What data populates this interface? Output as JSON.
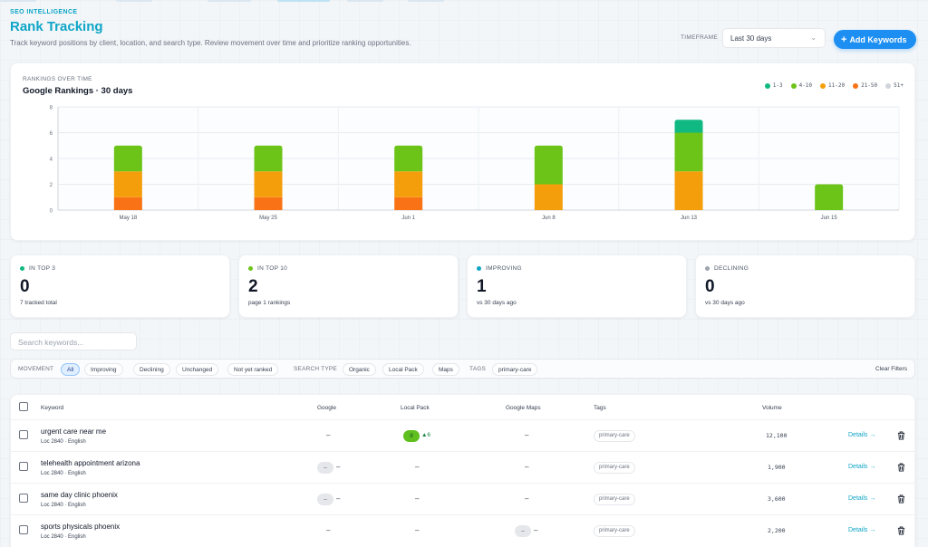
{
  "header": {
    "eyebrow": "SEO INTELLIGENCE",
    "title": "Rank Tracking",
    "subtitle": "Track keyword positions by client, location, and search type. Review movement over time and prioritize ranking opportunities.",
    "timeframe_label": "TIMEFRAME",
    "timeframe_value": "Last 30 days",
    "add_button": "Add Keywords"
  },
  "chart_card": {
    "eyebrow": "RANKINGS OVER TIME",
    "title": "Google Rankings · 30 days"
  },
  "colors": {
    "r1_3": "#10b981",
    "r4_10": "#6cc419",
    "r11_20": "#f59e0b",
    "r21_50": "#f97316",
    "r51": "#d1d5db",
    "accent": "#0ea5c6"
  },
  "chart_data": {
    "type": "bar",
    "stacked": true,
    "title": "Google Rankings · 30 days",
    "categories": [
      "May 18",
      "May 25",
      "Jun 1",
      "Jun 8",
      "Jun 13",
      "Jun 15"
    ],
    "series": [
      {
        "name": "1-3",
        "color": "#10b981",
        "values": [
          0,
          0,
          0,
          0,
          1,
          0
        ]
      },
      {
        "name": "4-10",
        "color": "#6cc419",
        "values": [
          2,
          2,
          2,
          3,
          3,
          2
        ]
      },
      {
        "name": "11-20",
        "color": "#f59e0b",
        "values": [
          2,
          2,
          2,
          2,
          3,
          0
        ]
      },
      {
        "name": "21-50",
        "color": "#f97316",
        "values": [
          1,
          1,
          1,
          0,
          0,
          0
        ]
      },
      {
        "name": "51+",
        "color": "#d1d5db",
        "values": [
          0,
          0,
          0,
          0,
          0,
          0
        ]
      }
    ],
    "yticks": [
      "0",
      "2",
      "4",
      "6",
      "8"
    ],
    "ylim": [
      0,
      8
    ],
    "grid": true,
    "legend_position": "top-right"
  },
  "stats": [
    {
      "label": "IN TOP 3",
      "value": "0",
      "sub": "7 tracked total",
      "color": "#10b981"
    },
    {
      "label": "IN TOP 10",
      "value": "2",
      "sub": "page 1 rankings",
      "color": "#6cc419"
    },
    {
      "label": "IMPROVING",
      "value": "1",
      "sub": "vs 30 days ago",
      "color": "#0ea5c6"
    },
    {
      "label": "DECLINING",
      "value": "0",
      "sub": "vs 30 days ago",
      "color": "#9ca3af"
    }
  ],
  "search": {
    "placeholder": "Search keywords..."
  },
  "filters": {
    "movement_label": "MOVEMENT",
    "movement": [
      "All",
      "Improving",
      "Declining",
      "Unchanged",
      "Not yet ranked"
    ],
    "search_type_label": "SEARCH TYPE",
    "search_types": [
      "Organic",
      "Local Pack",
      "Maps"
    ],
    "tags_label": "TAGS",
    "tags": [
      "primary-care"
    ],
    "clear": "Clear Filters"
  },
  "table": {
    "columns": [
      "Keyword",
      "Google",
      "Local Pack",
      "Google Maps",
      "Tags",
      "Volume"
    ],
    "rows": [
      {
        "keyword": "urgent care near me",
        "loc": "Loc 2840 · English",
        "google": "–",
        "local_pack": "8",
        "local_pack_delta": "▲6",
        "maps": "–",
        "tag": "primary-care",
        "volume": "12,100",
        "details": "Details →"
      },
      {
        "keyword": "telehealth appointment arizona",
        "loc": "Loc 2840 · English",
        "google": "–",
        "local_pack": "–",
        "maps": "–",
        "tag": "primary-care",
        "volume": "1,900",
        "details": "Details →"
      },
      {
        "keyword": "same day clinic phoenix",
        "loc": "Loc 2840 · English",
        "google": "–",
        "local_pack": "–",
        "maps": "–",
        "tag": "primary-care",
        "volume": "3,600",
        "details": "Details →"
      },
      {
        "keyword": "sports physicals phoenix",
        "loc": "Loc 2840 · English",
        "google": "–",
        "local_pack": "–",
        "maps": "–",
        "tag": "primary-care",
        "volume": "2,200",
        "details": "Details →"
      }
    ]
  }
}
